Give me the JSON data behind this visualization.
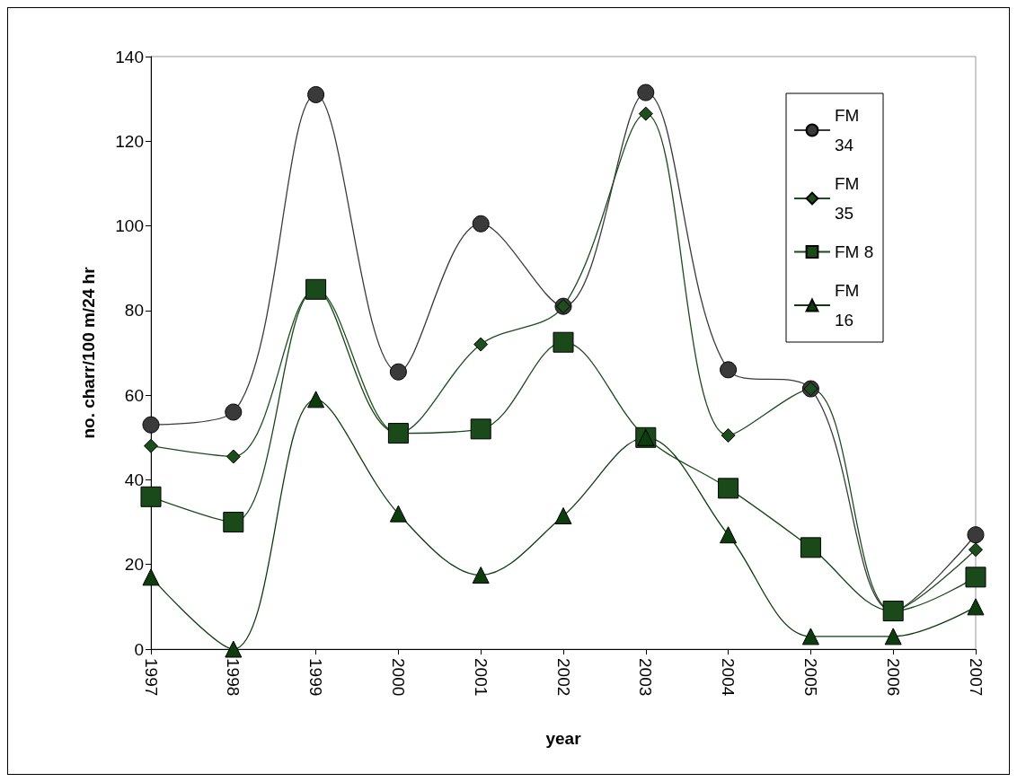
{
  "chart_data": {
    "type": "line",
    "xlabel": "year",
    "ylabel": "no. charr/100 m/24 hr",
    "categories": [
      "1997",
      "1998",
      "1999",
      "2000",
      "2001",
      "2002",
      "2003",
      "2004",
      "2005",
      "2006",
      "2007"
    ],
    "series": [
      {
        "name": "FM 34",
        "color": "#3a3a3a",
        "marker": "circle",
        "values": [
          53,
          56,
          131,
          65.5,
          100.5,
          81,
          131.5,
          66,
          61.5,
          9,
          27
        ]
      },
      {
        "name": "FM 35",
        "color": "#1e4d1e",
        "marker": "diamond",
        "values": [
          48,
          45.5,
          85,
          51,
          72,
          81,
          126.5,
          50.5,
          61.5,
          9,
          23.5
        ]
      },
      {
        "name": "FM 8",
        "color": "#1a4a1a",
        "marker": "square",
        "values": [
          36,
          30,
          85,
          51,
          52,
          72.5,
          50,
          38,
          24,
          9,
          17
        ]
      },
      {
        "name": "FM 16",
        "color": "#0d3d0d",
        "marker": "triangle",
        "values": [
          17,
          0,
          59,
          32,
          17.5,
          31.5,
          50,
          27,
          3,
          3,
          10
        ]
      }
    ],
    "ylim": [
      0,
      140
    ],
    "yticks": [
      0,
      20,
      40,
      60,
      80,
      100,
      120,
      140
    ],
    "grid": false,
    "legend": "top right",
    "line_style": "solid"
  }
}
